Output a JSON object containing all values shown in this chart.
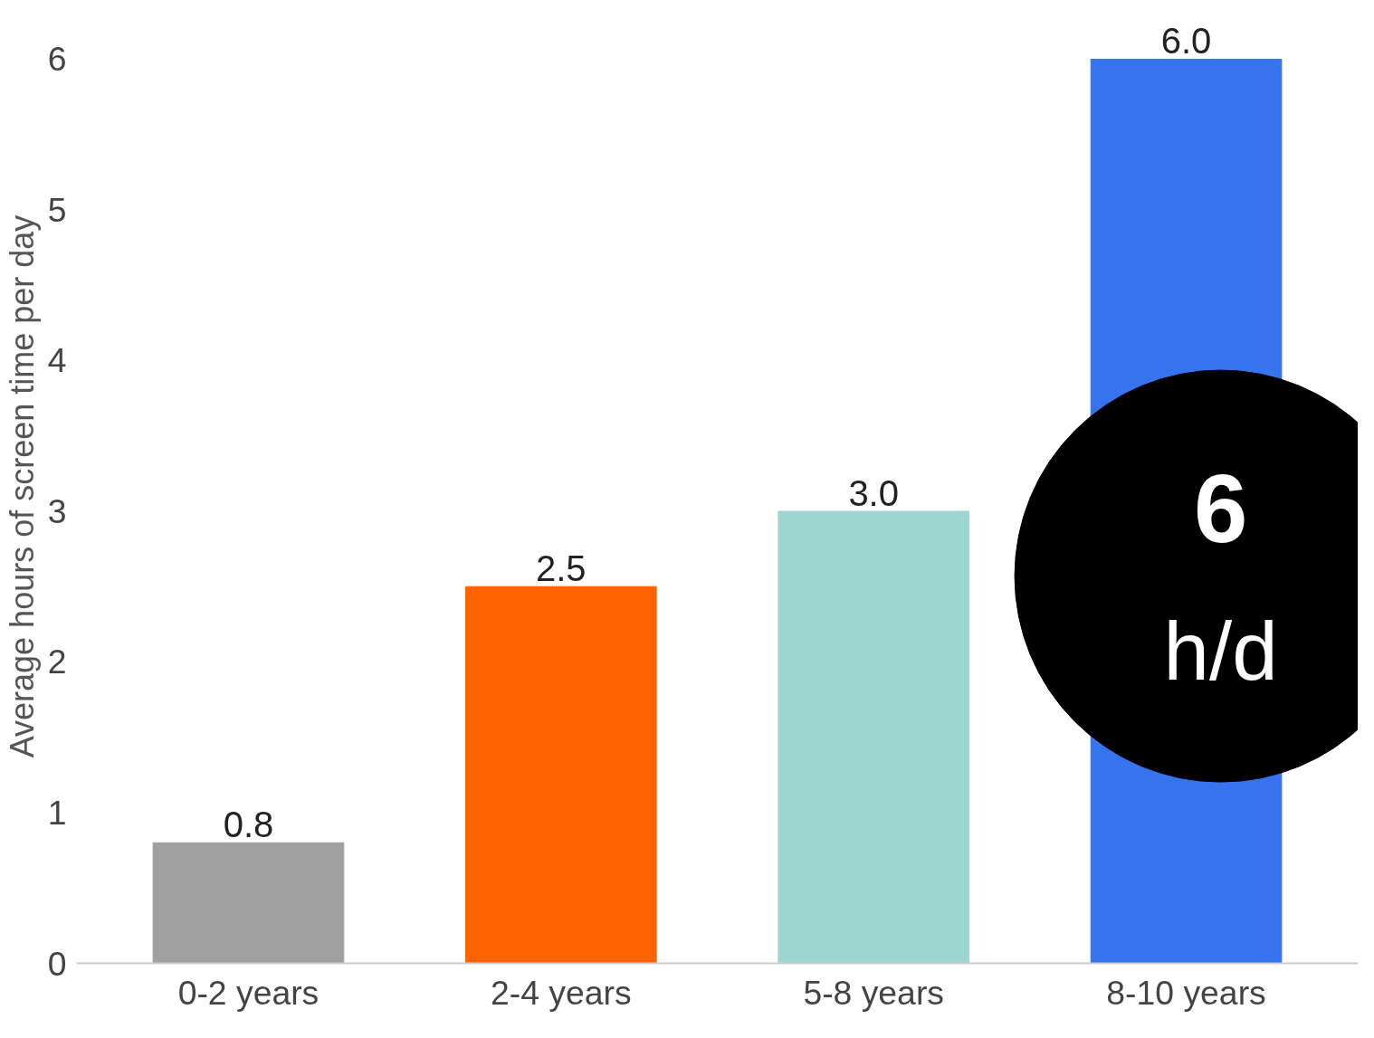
{
  "chart_data": {
    "type": "bar",
    "ylabel": "Average hours of screen time per day",
    "categories": [
      "0-2 years",
      "2-4 years",
      "5-8 years",
      "8-10 years"
    ],
    "values": [
      0.8,
      2.5,
      3.0,
      6.0
    ],
    "colors": [
      "#a0a0a0",
      "#ff6200",
      "#9dd6d0",
      "#3574ec"
    ],
    "ylim": [
      0,
      6
    ],
    "yticks": [
      0,
      1,
      2,
      3,
      4,
      5,
      6
    ],
    "grid": false,
    "value_labels": [
      "0.8",
      "2.5",
      "3.0",
      "6.0"
    ],
    "annotations": [
      "6",
      "h/d"
    ]
  }
}
